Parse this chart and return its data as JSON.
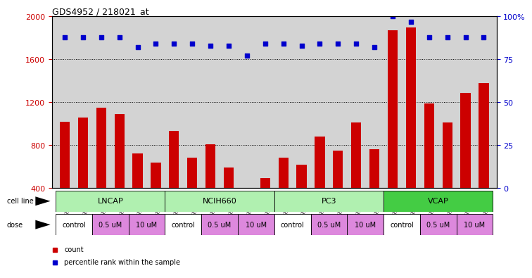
{
  "title": "GDS4952 / 218021_at",
  "samples": [
    "GSM1359772",
    "GSM1359773",
    "GSM1359774",
    "GSM1359775",
    "GSM1359776",
    "GSM1359777",
    "GSM1359760",
    "GSM1359761",
    "GSM1359762",
    "GSM1359763",
    "GSM1359764",
    "GSM1359765",
    "GSM1359778",
    "GSM1359779",
    "GSM1359780",
    "GSM1359781",
    "GSM1359782",
    "GSM1359783",
    "GSM1359766",
    "GSM1359767",
    "GSM1359768",
    "GSM1359769",
    "GSM1359770",
    "GSM1359771"
  ],
  "counts": [
    1020,
    1060,
    1150,
    1090,
    720,
    640,
    930,
    680,
    810,
    590,
    380,
    490,
    680,
    620,
    880,
    750,
    1010,
    760,
    1870,
    1900,
    1190,
    1010,
    1290,
    1380
  ],
  "percentile_ranks": [
    88,
    88,
    88,
    88,
    82,
    84,
    84,
    84,
    83,
    83,
    77,
    84,
    84,
    83,
    84,
    84,
    84,
    82,
    100,
    97,
    88,
    88,
    88,
    88
  ],
  "cell_lines": [
    {
      "label": "LNCAP",
      "start": 0,
      "end": 6,
      "color": "#b0f0b0"
    },
    {
      "label": "NCIH660",
      "start": 6,
      "end": 12,
      "color": "#b0f0b0"
    },
    {
      "label": "PC3",
      "start": 12,
      "end": 18,
      "color": "#b0f0b0"
    },
    {
      "label": "VCAP",
      "start": 18,
      "end": 24,
      "color": "#44cc44"
    }
  ],
  "doses": [
    {
      "label": "control",
      "start": 0,
      "end": 2,
      "color": "#ffffff"
    },
    {
      "label": "0.5 uM",
      "start": 2,
      "end": 4,
      "color": "#dd88dd"
    },
    {
      "label": "10 uM",
      "start": 4,
      "end": 6,
      "color": "#dd88dd"
    },
    {
      "label": "control",
      "start": 6,
      "end": 8,
      "color": "#ffffff"
    },
    {
      "label": "0.5 uM",
      "start": 8,
      "end": 10,
      "color": "#dd88dd"
    },
    {
      "label": "10 uM",
      "start": 10,
      "end": 12,
      "color": "#dd88dd"
    },
    {
      "label": "control",
      "start": 12,
      "end": 14,
      "color": "#ffffff"
    },
    {
      "label": "0.5 uM",
      "start": 14,
      "end": 16,
      "color": "#dd88dd"
    },
    {
      "label": "10 uM",
      "start": 16,
      "end": 18,
      "color": "#dd88dd"
    },
    {
      "label": "control",
      "start": 18,
      "end": 20,
      "color": "#ffffff"
    },
    {
      "label": "0.5 uM",
      "start": 20,
      "end": 22,
      "color": "#dd88dd"
    },
    {
      "label": "10 uM",
      "start": 22,
      "end": 24,
      "color": "#dd88dd"
    }
  ],
  "ylim_left": [
    400,
    2000
  ],
  "ylim_right": [
    0,
    100
  ],
  "yticks_left": [
    400,
    800,
    1200,
    1600,
    2000
  ],
  "yticks_right": [
    0,
    25,
    50,
    75,
    100
  ],
  "bar_color": "#cc0000",
  "dot_color": "#0000cc",
  "bg_color": "#d3d3d3",
  "bar_width": 0.55
}
